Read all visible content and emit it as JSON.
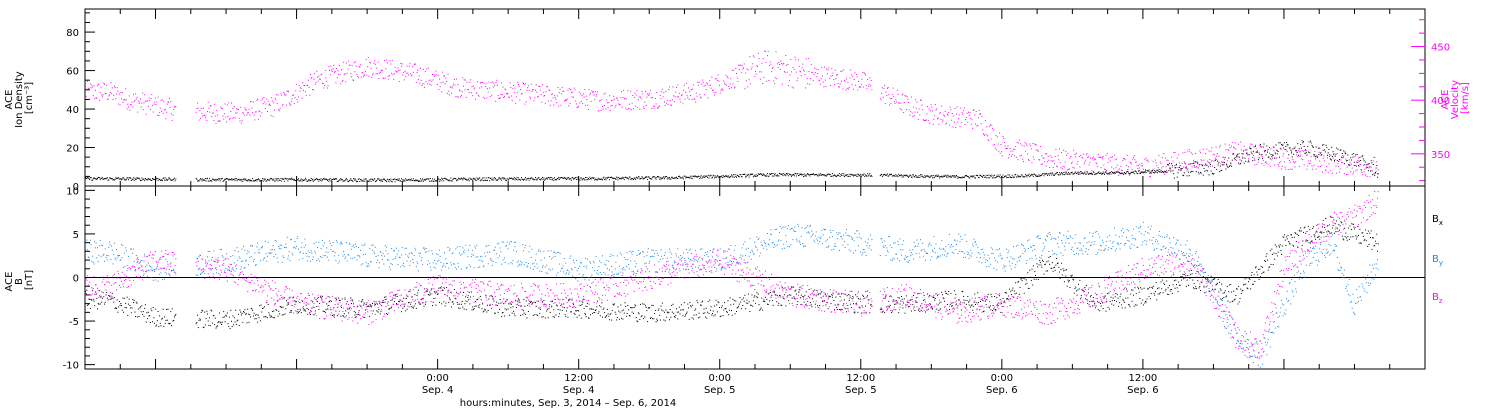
{
  "chart_data": [
    {
      "type": "scatter",
      "panel": "top",
      "ylabel_lines": [
        "ACE",
        "Ion Density",
        "[cm⁻³]"
      ],
      "y2label_lines": [
        "ACE",
        "Velocity",
        "[km/s]"
      ],
      "ylim": [
        0,
        92
      ],
      "yticks": [
        "0",
        "20",
        "40",
        "60",
        "80"
      ],
      "y2lim": [
        320,
        485
      ],
      "y2ticks": [
        "350",
        "400",
        "450"
      ],
      "series": [
        {
          "label": "Ion Density",
          "color": "#000000",
          "axis": "left",
          "points_hours": [
            -28,
            -20,
            -12,
            -4,
            4,
            12,
            20,
            28,
            36,
            44,
            50,
            54,
            58,
            62,
            66,
            70,
            74,
            78,
            80
          ],
          "values": [
            4,
            3.5,
            3.5,
            3.2,
            3.8,
            4,
            4.5,
            6,
            6,
            5,
            5.5,
            7,
            7,
            8,
            10,
            18,
            20,
            14,
            8
          ]
        },
        {
          "label": "Velocity",
          "color": "#ff00ff",
          "axis": "right",
          "points_hours": [
            -28,
            -26,
            -22,
            -17,
            -14,
            -10,
            -6,
            -2,
            2,
            6,
            10,
            14,
            18,
            22,
            26,
            28,
            32,
            36,
            40,
            42,
            44,
            46,
            48,
            52,
            56,
            60,
            64,
            68,
            72,
            76,
            80
          ],
          "values": [
            408,
            400,
            390,
            388,
            395,
            420,
            432,
            425,
            412,
            408,
            404,
            400,
            402,
            408,
            425,
            432,
            424,
            418,
            395,
            388,
            385,
            383,
            358,
            346,
            342,
            338,
            345,
            352,
            346,
            342,
            338
          ]
        }
      ]
    },
    {
      "type": "scatter",
      "panel": "bottom",
      "ylabel_lines": [
        "ACE",
        "B",
        "[nT]"
      ],
      "ylim": [
        -10.5,
        10.5
      ],
      "yticks": [
        "-10",
        "-5",
        "0",
        "5",
        "10"
      ],
      "legend": [
        "B",
        "B",
        "B"
      ],
      "legend_subscripts": [
        "x",
        "y",
        "z"
      ],
      "series": [
        {
          "label": "Bx",
          "color": "#000000",
          "points_hours": [
            -28,
            -24,
            -18,
            -12,
            -6,
            0,
            6,
            12,
            18,
            24,
            30,
            36,
            40,
            44,
            48,
            52,
            56,
            60,
            64,
            68,
            72,
            76,
            80
          ],
          "values": [
            -2.5,
            -4.5,
            -4.8,
            -3,
            -3.5,
            -2,
            -3.5,
            -3.5,
            -4,
            -3.5,
            -2,
            -3,
            -3,
            -2.5,
            -3,
            2,
            -3,
            -2,
            0,
            -2,
            4,
            6,
            4
          ]
        },
        {
          "label": "By",
          "color": "#1e88e5",
          "points_hours": [
            -28,
            -24,
            -18,
            -12,
            -6,
            0,
            6,
            12,
            18,
            24,
            30,
            36,
            40,
            44,
            48,
            52,
            56,
            60,
            64,
            66,
            68,
            70,
            72,
            74,
            76,
            78,
            80
          ],
          "values": [
            3,
            1,
            2,
            3.5,
            2.5,
            2,
            3,
            1,
            2,
            2,
            5,
            4,
            3,
            4,
            2,
            4,
            4,
            5,
            3,
            -2,
            -7,
            -9,
            -3,
            2,
            4,
            -3,
            2
          ]
        },
        {
          "label": "Bz",
          "color": "#ff00ff",
          "points_hours": [
            -28,
            -24,
            -18,
            -12,
            -6,
            0,
            6,
            12,
            18,
            24,
            30,
            36,
            40,
            44,
            48,
            52,
            56,
            60,
            64,
            66,
            68,
            70,
            72,
            74,
            76,
            78,
            80
          ],
          "values": [
            -1,
            2,
            1,
            -3,
            -4,
            -1,
            -2,
            -2,
            0,
            2,
            -2,
            -3,
            -2,
            -4,
            -3,
            -4,
            -2,
            1,
            2,
            -2,
            -7,
            -8,
            1,
            4,
            6,
            7,
            9
          ]
        }
      ]
    }
  ],
  "x_axis": {
    "title": "hours:minutes, Sep.  3, 2014 – Sep.  6, 2014",
    "range_hours": [
      -30,
      84
    ],
    "ticks": [
      {
        "hours": 0,
        "time": "0:00",
        "date": "Sep. 4"
      },
      {
        "hours": 12,
        "time": "12:00",
        "date": "Sep. 4"
      },
      {
        "hours": 24,
        "time": "0:00",
        "date": "Sep. 5"
      },
      {
        "hours": 36,
        "time": "12:00",
        "date": "Sep. 5"
      },
      {
        "hours": 48,
        "time": "0:00",
        "date": "Sep. 6"
      },
      {
        "hours": 60,
        "time": "12:00",
        "date": "Sep. 6"
      }
    ]
  },
  "colors": {
    "density": "#000000",
    "velocity": "#ff00ff",
    "bx": "#000000",
    "by": "#1e88e5",
    "bz": "#ff00ff"
  }
}
